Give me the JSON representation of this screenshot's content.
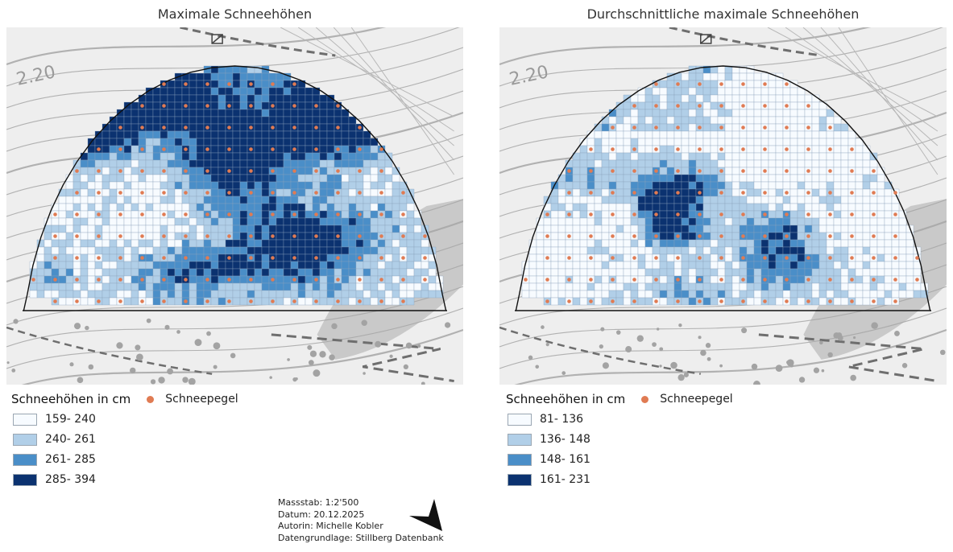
{
  "maps": [
    {
      "title": "Maximale Schneehöhen",
      "legend": {
        "title": "Schneehöhen in cm",
        "gauge_label": "Schneepegel",
        "classes": [
          {
            "label": "159- 240",
            "color": "#f7fbff"
          },
          {
            "label": "240- 261",
            "color": "#b1cfe8"
          },
          {
            "label": "261- 285",
            "color": "#4a8ec8"
          },
          {
            "label": "285- 394",
            "color": "#0b3270"
          }
        ]
      }
    },
    {
      "title": "Durchschnittliche maximale Schneehöhen",
      "legend": {
        "title": "Schneehöhen in cm",
        "gauge_label": "Schneepegel",
        "classes": [
          {
            "label": "81- 136",
            "color": "#f7fbff"
          },
          {
            "label": "136- 148",
            "color": "#b1cfe8"
          },
          {
            "label": "148- 161",
            "color": "#4a8ec8"
          },
          {
            "label": "161- 231",
            "color": "#0b3270"
          }
        ]
      }
    }
  ],
  "info": {
    "scale": "Massstab: 1:2'500",
    "date": "Datum: 20.12.2025",
    "author": "Autorin: Michelle Kobler",
    "source": "Datengrundlage: Stillberg Datenbank"
  },
  "icons": {
    "north_arrow": "north-arrow-icon",
    "gauge": "orange-dot-icon"
  },
  "colors": {
    "gauge": "#e07b53",
    "basemap": "#eeeeee",
    "contour": "#a6a6a6",
    "path": "#6e6e6e"
  }
}
